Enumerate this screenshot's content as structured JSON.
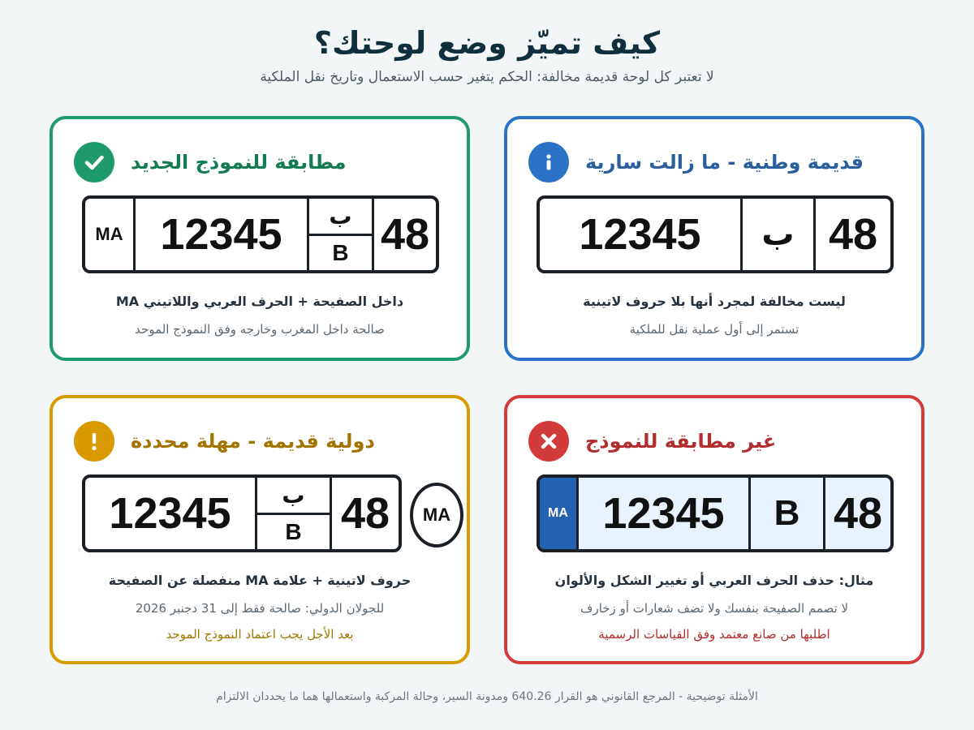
{
  "header": {
    "title": "كيف تميّز وضع لوحتك؟",
    "subtitle": "لا تعتبر كل لوحة قديمة مخالفة: الحكم يتغير حسب الاستعمال وتاريخ نقل الملكية"
  },
  "cards": {
    "compliant": {
      "title": "مطابقة للنموذج الجديد",
      "icon": "check-icon",
      "color": "#1f9a6b",
      "plate": {
        "ma": "MA",
        "number": "12345",
        "letter_ar": "ب",
        "letter_lat": "B",
        "code": "48"
      },
      "main": "داخل الصفيحة + الحرف العربي واللاتيني MA",
      "sub": "صالحة داخل المغرب وخارجه وفق النموذج الموحد"
    },
    "old_national": {
      "title": "قديمة وطنية - ما زالت سارية",
      "icon": "info-icon",
      "color": "#2a72c5",
      "plate": {
        "number": "12345",
        "letter_ar": "ب",
        "code": "48"
      },
      "main": "ليست مخالفة لمجرد أنها بلا حروف لاتينية",
      "sub": "تستمر إلى أول عملية نقل للملكية"
    },
    "old_international": {
      "title": "دولية قديمة - مهلة محددة",
      "icon": "exclamation-icon",
      "color": "#d99a00",
      "plate": {
        "number": "12345",
        "letter_ar": "ب",
        "letter_lat": "B",
        "code": "48",
        "oval": "MA"
      },
      "main": "حروف لاتينية + علامة MA منفصلة عن الصفيحة",
      "sub": "للجولان الدولي: صالحة فقط إلى 31 دجنبر 2026",
      "note": "بعد الأجل يجب اعتماد النموذج الموحد"
    },
    "non_compliant": {
      "title": "غير مطابقة للنموذج",
      "icon": "x-icon",
      "color": "#d33b3b",
      "plate": {
        "ma": "MA",
        "number": "12345",
        "letter_lat": "B",
        "code": "48"
      },
      "main": "مثال: حذف الحرف العربي أو تغيير الشكل والألوان",
      "sub": "لا تصمم الصفيحة بنفسك ولا تضف شعارات أو زخارف",
      "note": "اطلبها من صانع معتمد وفق القياسات الرسمية"
    }
  },
  "footer": "الأمثلة توضيحية - المرجع القانوني هو القرار 640.26 ومدونة السير، وحالة المركبة واستعمالها هما ما يحددان الالتزام"
}
